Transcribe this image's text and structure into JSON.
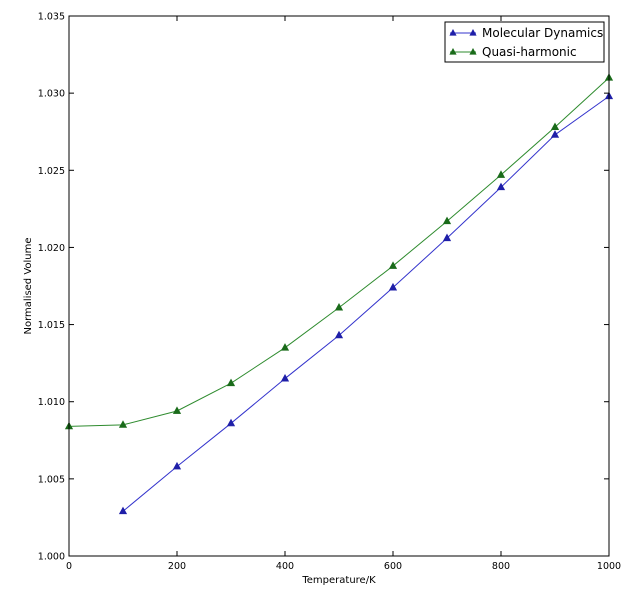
{
  "chart_data": {
    "type": "line",
    "title": "",
    "xlabel": "Temperature/K",
    "ylabel": "Normalised Volume",
    "xlim": [
      0,
      1000
    ],
    "ylim": [
      1.0,
      1.035
    ],
    "xticks": [
      "0",
      "200",
      "400",
      "600",
      "800",
      "1000"
    ],
    "yticks": [
      "1.000",
      "1.005",
      "1.010",
      "1.015",
      "1.020",
      "1.025",
      "1.030",
      "1.035"
    ],
    "grid": false,
    "legend_position": "top-right",
    "series": [
      {
        "name": "Molecular Dynamics",
        "color": "#3333cc",
        "marker_color": "#1f1fa8",
        "marker": "triangle",
        "x": [
          100,
          200,
          300,
          400,
          500,
          600,
          700,
          800,
          900,
          1000
        ],
        "y": [
          1.0029,
          1.0058,
          1.0086,
          1.0115,
          1.0143,
          1.0174,
          1.0206,
          1.0239,
          1.0273,
          1.0298
        ]
      },
      {
        "name": "Quasi-harmonic",
        "color": "#2e8b2e",
        "marker_color": "#1a6b1a",
        "marker": "triangle",
        "x": [
          0,
          100,
          200,
          300,
          400,
          500,
          600,
          700,
          800,
          900,
          1000
        ],
        "y": [
          1.0084,
          1.0085,
          1.0094,
          1.0112,
          1.0135,
          1.0161,
          1.0188,
          1.0217,
          1.0247,
          1.0278,
          1.031
        ]
      }
    ]
  }
}
